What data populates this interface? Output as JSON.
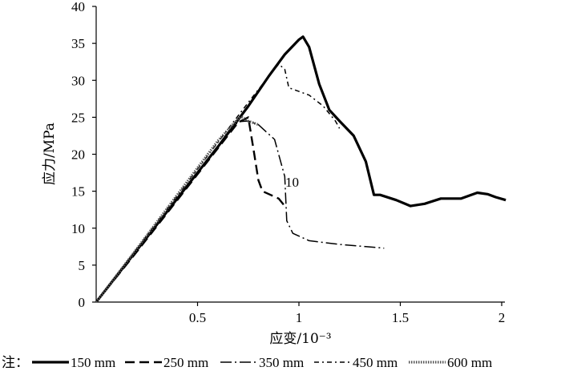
{
  "chart_data": {
    "type": "line",
    "xlabel": "应变/10⁻³",
    "ylabel": "应力/MPa",
    "xlim": [
      0,
      2
    ],
    "ylim": [
      0,
      40
    ],
    "x_ticks": [
      "0.5",
      "1",
      "1.5",
      "2"
    ],
    "y_ticks": [
      "0",
      "5",
      "10",
      "15",
      "20",
      "25",
      "30",
      "35",
      "40"
    ],
    "annotation": "10",
    "legend_prefix": "注：",
    "legend_position": "bottom",
    "series": [
      {
        "name": "150 mm",
        "style": "thick-solid",
        "x": [
          0,
          0.2,
          0.4,
          0.6,
          0.75,
          0.85,
          0.93,
          1.0,
          1.02,
          1.05,
          1.1,
          1.15,
          1.2,
          1.27,
          1.33,
          1.37,
          1.4,
          1.48,
          1.55,
          1.62,
          1.7,
          1.8,
          1.88,
          1.93,
          1.97,
          2.02
        ],
        "y": [
          0,
          7,
          14,
          21,
          26.5,
          30.5,
          33.5,
          35.5,
          35.9,
          34.5,
          29.5,
          26,
          24.5,
          22.5,
          19,
          14.5,
          14.5,
          13.8,
          13,
          13.3,
          14,
          14,
          14.8,
          14.6,
          14.2,
          13.8
        ]
      },
      {
        "name": "250 mm",
        "style": "dash",
        "x": [
          0,
          0.2,
          0.4,
          0.6,
          0.7,
          0.75,
          0.78,
          0.8,
          0.82,
          0.86,
          0.9,
          0.93
        ],
        "y": [
          0,
          6.8,
          13.8,
          20.8,
          24.3,
          25,
          20,
          16.5,
          15,
          14.5,
          14,
          13
        ]
      },
      {
        "name": "350 mm",
        "style": "long-dash-dot",
        "x": [
          0,
          0.2,
          0.4,
          0.6,
          0.7,
          0.75,
          0.8,
          0.88,
          0.93,
          0.94,
          0.97,
          1.05,
          1.2,
          1.33,
          1.42
        ],
        "y": [
          0,
          7,
          14,
          21,
          24.4,
          24.5,
          24,
          22,
          17,
          11,
          9.3,
          8.3,
          7.8,
          7.5,
          7.3
        ]
      },
      {
        "name": "450 mm",
        "style": "dash-dot",
        "x": [
          0,
          0.2,
          0.4,
          0.6,
          0.75,
          0.85,
          0.9,
          0.93,
          0.95,
          1.0,
          1.05,
          1.12,
          1.18,
          1.2
        ],
        "y": [
          0,
          7.2,
          14.4,
          21.6,
          27,
          30.5,
          32.2,
          31.5,
          29,
          28.5,
          28,
          26.5,
          24.5,
          23.5
        ]
      },
      {
        "name": "600 mm",
        "style": "dotted-band",
        "x": [
          0,
          0.2,
          0.4,
          0.6,
          0.7,
          0.72,
          0.75,
          0.8
        ],
        "y": [
          0,
          7.2,
          14.5,
          21.8,
          24.8,
          25,
          24.5,
          24
        ]
      }
    ]
  }
}
